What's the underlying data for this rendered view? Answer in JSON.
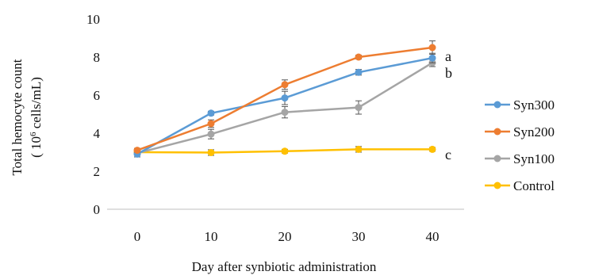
{
  "chart_data": {
    "type": "line",
    "xlabel": "Day after synbiotic administration",
    "ylabel_line1": "Total hemocyte count",
    "ylabel_line2_prefix": "( 10",
    "ylabel_line2_sup": "6",
    "ylabel_line2_suffix": " cells/mL)",
    "x": [
      0,
      10,
      20,
      30,
      40
    ],
    "xlim": [
      0,
      40
    ],
    "ylim": [
      0,
      10
    ],
    "yticks": [
      0,
      2,
      4,
      6,
      8,
      10
    ],
    "grid": false,
    "legend_position": "right",
    "series": [
      {
        "name": "Syn300",
        "color": "#5b9bd5",
        "values": [
          2.9,
          5.05,
          5.85,
          7.2,
          7.95
        ],
        "errors": [
          0.15,
          0.1,
          0.35,
          0.15,
          0.25
        ],
        "label": ""
      },
      {
        "name": "Syn200",
        "color": "#ed7d31",
        "values": [
          3.1,
          4.5,
          6.55,
          8.0,
          8.5
        ],
        "errors": [
          0.1,
          0.2,
          0.25,
          0.1,
          0.35
        ],
        "label": "a"
      },
      {
        "name": "Syn100",
        "color": "#a5a5a5",
        "values": [
          2.95,
          3.95,
          5.1,
          5.35,
          7.7
        ],
        "errors": [
          0.1,
          0.25,
          0.3,
          0.35,
          0.2
        ],
        "label": "b"
      },
      {
        "name": "Control",
        "color": "#ffc000",
        "values": [
          3.0,
          2.98,
          3.05,
          3.15,
          3.15
        ],
        "errors": [
          0.1,
          0.15,
          0.1,
          0.15,
          0.1
        ],
        "label": "c"
      }
    ]
  }
}
